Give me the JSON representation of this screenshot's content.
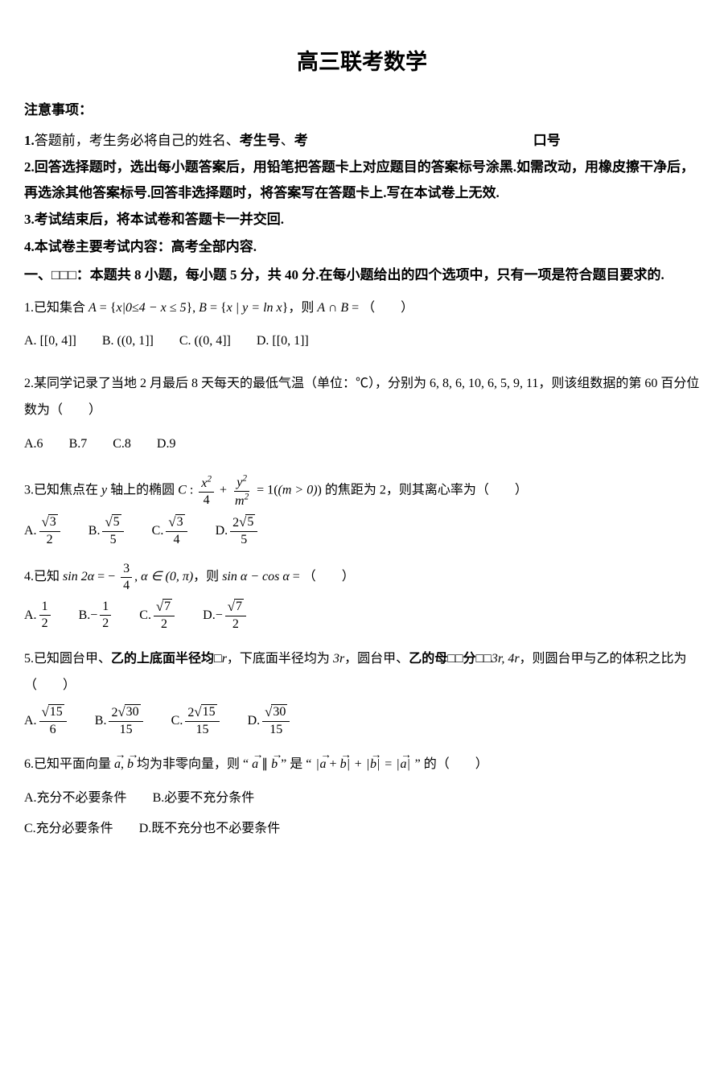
{
  "title": "高三联考数学",
  "notice_label": "注意事项：",
  "notices": [
    {
      "prefix": "1.",
      "body_a": "答题前，考生务必将自己的姓名、",
      "bold_a": "考生号",
      "sep": "、",
      "bold_b": "考",
      "gap": true,
      "tail_bold": "口号"
    },
    {
      "prefix": "2.",
      "body": "回答选择题时，选出每小题答案后，用铅笔把答题卡上对应题目的答案标号涂黑.如需改动，用橡皮擦干净后，再选涂其他答案标号.回答非选择题时，将答案写在答题卡上.写在本试卷上无效."
    },
    {
      "prefix": "3.",
      "body": "考试结束后，将本试卷和答题卡一并交回."
    },
    {
      "prefix": "4.",
      "body": "本试卷主要考试内容：高考全部内容."
    }
  ],
  "section_header": "一、□□□：本题共 8 小题，每小题 5 分，共 40 分.在每小题给出的四个选项中，只有一项是符合题目要求的.",
  "q1": {
    "num": "1.",
    "pre": "已知集合 ",
    "A_sym": "A",
    "eq1": " = ",
    "setA_inner": "x|0≤4 − x ≤ 5",
    "B_sym": "B",
    "setB_inner": "x | y = ln x",
    "post": "，则 ",
    "AcapB": "A ∩ B",
    "tail": " = （　　）",
    "opts": {
      "A": "A.",
      "A_content": "[0, 4]",
      "B": "B.",
      "B_content": "(0, 1]",
      "C": "C.",
      "C_content": "(0, 4]",
      "D": "D.",
      "D_content": "[0, 1]"
    }
  },
  "q2": {
    "num": "2.",
    "body": "某同学记录了当地 2 月最后 8 天每天的最低气温（单位：℃），分别为 6, 8, 6, 10, 6, 5, 9, 11，则该组数据的第 60 百分位数为（　　）",
    "opts": {
      "A": "A.6",
      "B": "B.7",
      "C": "C.8",
      "D": "D.9"
    }
  },
  "q3": {
    "num": "3.",
    "pre": "已知焦点在 ",
    "y_sym": "y",
    "mid1": " 轴上的椭圆 ",
    "C_sym": "C",
    "colon": " : ",
    "f1_num": "x",
    "f1_den": "4",
    "plus": " + ",
    "f2_num": "y",
    "f2_den": "m",
    "eq": " = 1",
    "paren": "(m > 0)",
    "mid2": " 的焦距为 2，则其离心率为（　　）",
    "opts": {
      "A": {
        "label": "A.",
        "num_sqrt": "3",
        "den": "2"
      },
      "B": {
        "label": "B.",
        "num_sqrt": "5",
        "den": "5"
      },
      "C": {
        "label": "C.",
        "num_sqrt": "3",
        "den": "4"
      },
      "D": {
        "label": "D.",
        "num_coef": "2",
        "num_sqrt": "5",
        "den": "5"
      }
    }
  },
  "q4": {
    "num": "4.",
    "pre": "已知 ",
    "sin2a": "sin 2α",
    "eq": " = ",
    "neg": "−",
    "f_num": "3",
    "f_den": "4",
    "comma": ", ",
    "alpha_in": "α ∈ (0, π)",
    "post": "，则 ",
    "expr": "sin α − cos α",
    "tail": " = （　　）",
    "opts": {
      "A": {
        "label": "A.",
        "num": "1",
        "den": "2"
      },
      "B": {
        "label": "B.",
        "neg": "−",
        "num": "1",
        "den": "2"
      },
      "C": {
        "label": "C.",
        "num_sqrt": "7",
        "den": "2"
      },
      "D": {
        "label": "D.",
        "neg": "−",
        "num_sqrt": "7",
        "den": "2"
      }
    }
  },
  "q5": {
    "num": "5.",
    "pre": "已知圆台甲、",
    "bold1": "乙的上底面半径均□",
    "r1": "r",
    "mid1": "，下底面半径均为 ",
    "r2": "3r",
    "mid2": "，圆台甲、",
    "bold2": "乙的母□□分□□",
    "r3": "3r, 4r",
    "mid3": "，则圆台甲与乙的体积之比为（　　）",
    "opts": {
      "A": {
        "label": "A.",
        "num_sqrt": "15",
        "den": "6"
      },
      "B": {
        "label": "B.",
        "num_coef": "2",
        "num_sqrt": "30",
        "den": "15"
      },
      "C": {
        "label": "C.",
        "num_coef": "2",
        "num_sqrt": "15",
        "den": "15"
      },
      "D": {
        "label": "D.",
        "num_sqrt": "30",
        "den": "15"
      }
    }
  },
  "q6": {
    "num": "6.",
    "pre": "已知平面向量 ",
    "a_sym": "a",
    "comma1": ", ",
    "b_sym": "b",
    "mid1": " 均为非零向量，则 “ ",
    "apar": "a",
    "parallel": " ∥ ",
    "bpar": "b",
    "mid2": " ” 是 “ ",
    "eq_mid": " + ",
    "eq_eq": " = ",
    "mid3": " ” 的（　　）",
    "opts": {
      "A": "A.充分不必要条件",
      "B": "B.必要不充分条件",
      "C": "C.充分必要条件",
      "D": "D.既不充分也不必要条件"
    }
  }
}
